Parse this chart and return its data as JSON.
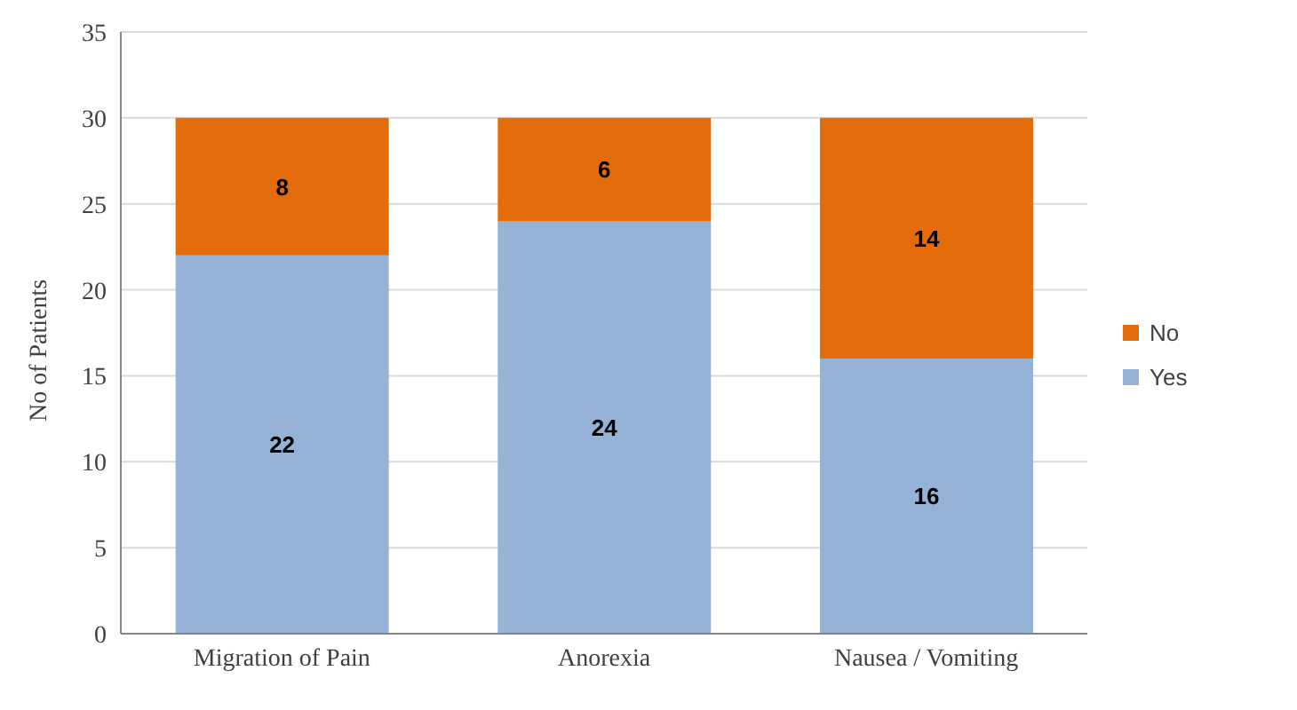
{
  "chart_data": {
    "type": "bar",
    "stacked": true,
    "categories": [
      "Migration of Pain",
      "Anorexia",
      "Nausea / Vomiting"
    ],
    "series": [
      {
        "name": "Yes",
        "color": "#95b3d7",
        "values": [
          22,
          24,
          16
        ]
      },
      {
        "name": "No",
        "color": "#e46c0a",
        "values": [
          8,
          6,
          14
        ]
      }
    ],
    "ylabel": "No of Patients",
    "ylim": [
      0,
      35
    ],
    "yticks": [
      0,
      5,
      10,
      15,
      20,
      25,
      30,
      35
    ],
    "grid": "y",
    "legend": "right",
    "data_labels": true
  }
}
